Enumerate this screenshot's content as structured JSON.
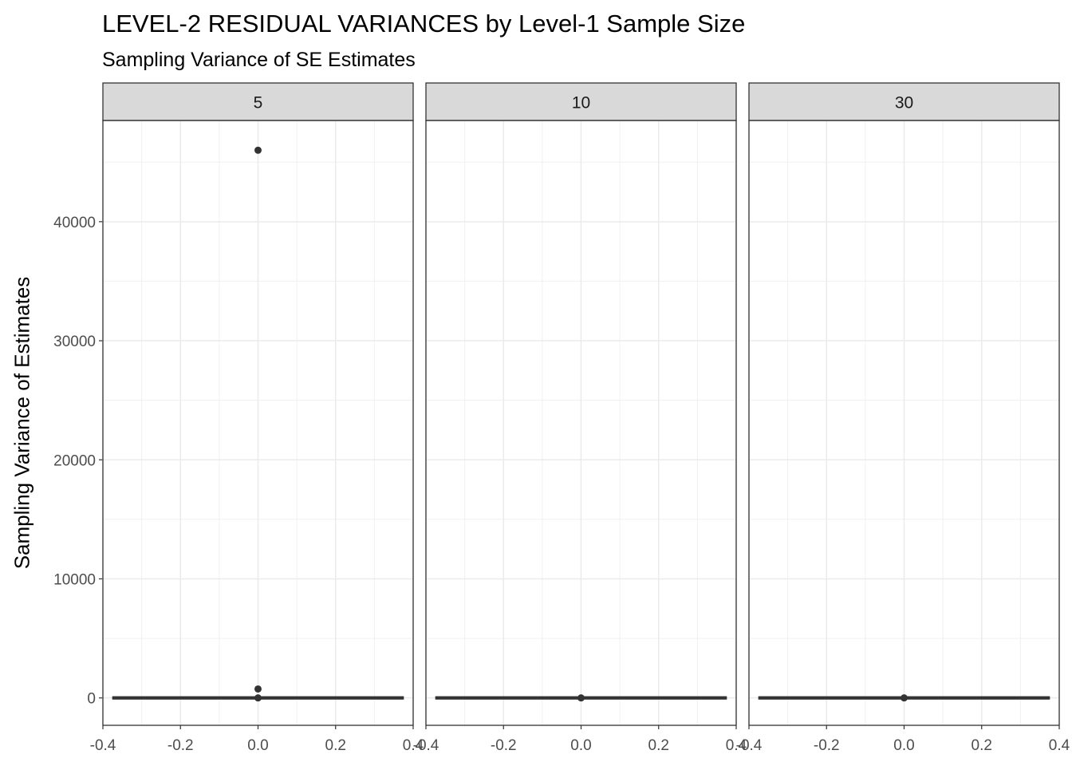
{
  "title": "LEVEL-2 RESIDUAL VARIANCES by Level-1 Sample Size",
  "subtitle": "Sampling Variance of SE Estimates",
  "chart_data": {
    "type": "boxplot",
    "title": "LEVEL-2 RESIDUAL VARIANCES by Level-1 Sample Size",
    "subtitle": "Sampling Variance of SE Estimates",
    "xlabel": "",
    "ylabel": "Sampling Variance of Estimates",
    "xlim": [
      -0.4,
      0.4
    ],
    "ylim": [
      -2300,
      48500
    ],
    "x_ticks": [
      "-0.4",
      "-0.2",
      "0.0",
      "0.2",
      "0.4"
    ],
    "x_tick_values": [
      -0.4,
      -0.2,
      0.0,
      0.2,
      0.4
    ],
    "y_ticks": [
      "0",
      "10000",
      "20000",
      "30000",
      "40000"
    ],
    "y_tick_values": [
      0,
      10000,
      20000,
      30000,
      40000
    ],
    "grid": true,
    "theme": "bw",
    "box_color": "#333333",
    "facets": [
      {
        "label": "5",
        "box": {
          "x_min": -0.375,
          "x_max": 0.375,
          "q1": 0,
          "median": 0,
          "q3": 0
        },
        "outliers": [
          46000,
          750,
          0
        ]
      },
      {
        "label": "10",
        "box": {
          "x_min": -0.375,
          "x_max": 0.375,
          "q1": 0,
          "median": 0,
          "q3": 0
        },
        "outliers": [
          0
        ]
      },
      {
        "label": "30",
        "box": {
          "x_min": -0.375,
          "x_max": 0.375,
          "q1": 0,
          "median": 0,
          "q3": 0
        },
        "outliers": [
          0
        ]
      }
    ]
  }
}
